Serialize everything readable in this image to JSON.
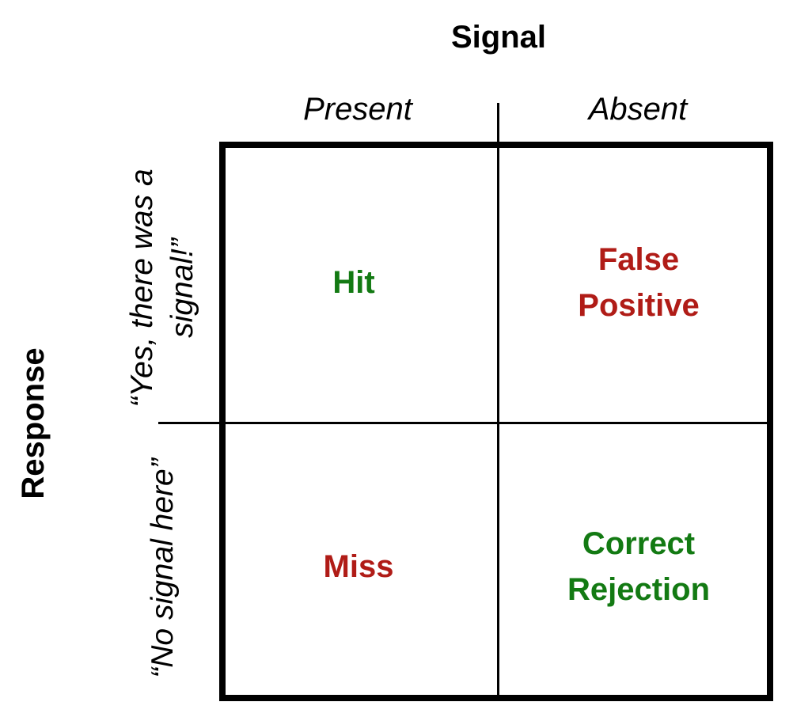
{
  "title": "Signal",
  "columns": [
    {
      "label": "Present"
    },
    {
      "label": "Absent"
    }
  ],
  "row_axis_title": "Response",
  "rows": [
    {
      "label": "“Yes, there was a signal!”"
    },
    {
      "label": "“No signal here”"
    }
  ],
  "cells": {
    "hit": "Hit",
    "false_positive": "False Positive",
    "miss": "Miss",
    "correct_rejection": "Correct Rejection"
  },
  "colors": {
    "correct": "#137a13",
    "error": "#b01c17",
    "lines": "#000000"
  }
}
